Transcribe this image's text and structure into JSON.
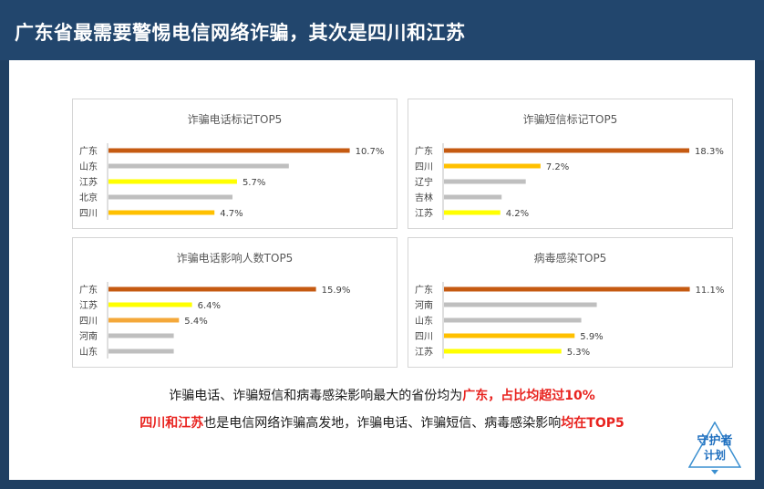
{
  "header": {
    "title": "广东省最需要警惕电信网络诈骗，其次是四川和江苏"
  },
  "chart_data": [
    {
      "type": "bar",
      "title": "诈骗电话标记TOP5",
      "categories": [
        "广东",
        "山东",
        "江苏",
        "北京",
        "四川"
      ],
      "values": [
        10.7,
        8.0,
        5.7,
        5.5,
        4.7
      ],
      "labels": [
        "10.7%",
        "",
        "5.7%",
        "",
        "4.7%"
      ],
      "colors": [
        "#c55a11",
        "#bfbfbf",
        "#ffff00",
        "#bfbfbf",
        "#ffc000"
      ],
      "xlim": [
        0,
        11
      ]
    },
    {
      "type": "bar",
      "title": "诈骗短信标记TOP5",
      "categories": [
        "广东",
        "四川",
        "辽宁",
        "吉林",
        "江苏"
      ],
      "values": [
        18.3,
        7.2,
        6.1,
        4.3,
        4.2
      ],
      "labels": [
        "18.3%",
        "7.2%",
        "",
        "",
        "4.2%"
      ],
      "colors": [
        "#c55a11",
        "#ffc000",
        "#bfbfbf",
        "#bfbfbf",
        "#ffff00"
      ],
      "xlim": [
        0,
        18.5
      ]
    },
    {
      "type": "bar",
      "title": "诈骗电话影响人数TOP5",
      "categories": [
        "广东",
        "江苏",
        "四川",
        "河南",
        "山东"
      ],
      "values": [
        15.9,
        6.4,
        5.4,
        5.0,
        5.0
      ],
      "labels": [
        "15.9%",
        "6.4%",
        "5.4%",
        "",
        ""
      ],
      "colors": [
        "#c55a11",
        "#ffff00",
        "#f4a83a",
        "#bfbfbf",
        "#bfbfbf"
      ],
      "xlim": [
        0,
        19
      ]
    },
    {
      "type": "bar",
      "title": "病毒感染TOP5",
      "categories": [
        "广东",
        "河南",
        "山东",
        "四川",
        "江苏"
      ],
      "values": [
        11.1,
        6.9,
        6.2,
        5.9,
        5.3
      ],
      "labels": [
        "11.1%",
        "",
        "",
        "5.9%",
        "5.3%"
      ],
      "colors": [
        "#c55a11",
        "#bfbfbf",
        "#bfbfbf",
        "#ffc000",
        "#ffff00"
      ],
      "xlim": [
        0,
        11.2
      ]
    }
  ],
  "caption": {
    "line1_pre": "诈骗电话、诈骗短信和病毒感染影响最大的省份均为",
    "line1_highlight": "广东，占比均超过10%",
    "line2_highlight1": "四川和江苏",
    "line2_mid": "也是电信网络诈骗高发地，诈骗电话、诈骗短信、病毒感染影响",
    "line2_highlight2": "均在TOP5"
  },
  "logo": {
    "line1": "守护者",
    "line2": "计划"
  }
}
